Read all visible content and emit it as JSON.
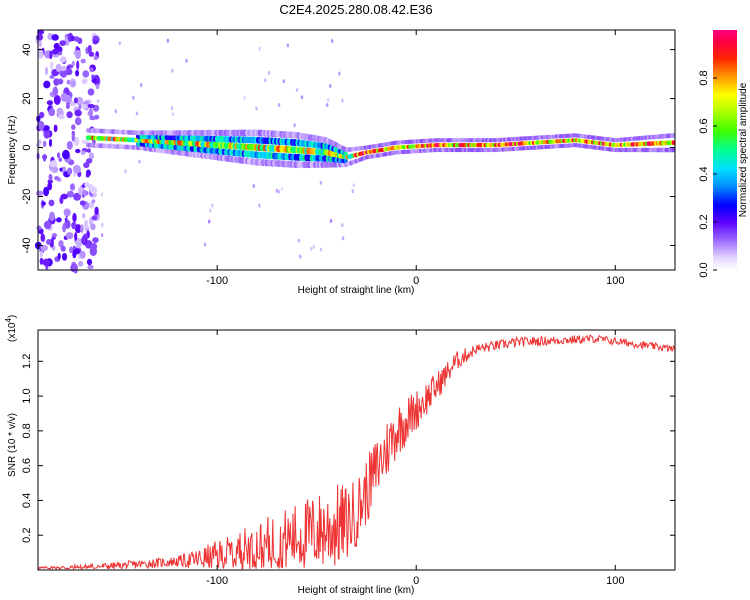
{
  "title": "C2E4.2025.280.08.42.E36",
  "chart_data": [
    {
      "type": "heatmap",
      "name": "spectrogram",
      "xlabel": "Height of straight line (km)",
      "ylabel": "Frequency (Hz)",
      "xlim": [
        -190,
        130
      ],
      "ylim": [
        -50,
        48
      ],
      "xticks": [
        -100,
        0,
        100
      ],
      "xtick_labels": [
        "-100",
        "0",
        "100"
      ],
      "yticks": [
        -40,
        -20,
        0,
        20,
        40
      ],
      "ytick_labels": [
        "-40",
        "-20",
        "0",
        "20",
        "40"
      ],
      "colorbar": {
        "label": "Normalized spectral amplitude",
        "ticks": [
          0.0,
          0.2,
          0.4,
          0.6,
          0.8
        ],
        "tick_labels": [
          "0.0",
          "0.2",
          "0.4",
          "0.6",
          "0.8"
        ],
        "range": [
          0,
          1
        ]
      },
      "noise_region_x": [
        -190,
        -160
      ],
      "band": [
        {
          "x": -165,
          "freq": 4,
          "width": 3
        },
        {
          "x": -140,
          "freq": 3,
          "width": 3
        },
        {
          "x": -120,
          "freq": 2,
          "width": 4
        },
        {
          "x": -100,
          "freq": 1,
          "width": 5
        },
        {
          "x": -80,
          "freq": 0,
          "width": 6
        },
        {
          "x": -60,
          "freq": -1,
          "width": 6
        },
        {
          "x": -45,
          "freq": -2,
          "width": 5
        },
        {
          "x": -35,
          "freq": -4,
          "width": 3
        },
        {
          "x": -25,
          "freq": -2,
          "width": 2
        },
        {
          "x": -10,
          "freq": 0,
          "width": 2
        },
        {
          "x": 10,
          "freq": 1,
          "width": 2
        },
        {
          "x": 40,
          "freq": 1,
          "width": 2
        },
        {
          "x": 80,
          "freq": 3,
          "width": 2
        },
        {
          "x": 100,
          "freq": 1,
          "width": 2
        },
        {
          "x": 130,
          "freq": 2,
          "width": 3
        }
      ]
    },
    {
      "type": "line",
      "name": "snr",
      "xlabel": "Height of straight line (km)",
      "ylabel": "SNR (10 * v/v)",
      "yscale_label": "(x10",
      "yscale_exp": "4",
      "yscale_close": ")",
      "xlim": [
        -190,
        130
      ],
      "ylim": [
        0,
        1.38
      ],
      "xticks": [
        -100,
        0,
        100
      ],
      "xtick_labels": [
        "-100",
        "0",
        "100"
      ],
      "yticks": [
        0.2,
        0.4,
        0.6,
        0.8,
        1.0,
        1.2
      ],
      "ytick_labels": [
        "0.2",
        "0.4",
        "0.6",
        "0.8",
        "1.0",
        "1.2"
      ],
      "color": "#ee3333",
      "trend": {
        "x": [
          -190,
          -170,
          -150,
          -130,
          -110,
          -95,
          -85,
          -70,
          -60,
          -50,
          -40,
          -35,
          -30,
          -25,
          -20,
          -10,
          0,
          10,
          20,
          30,
          50,
          70,
          90,
          110,
          130
        ],
        "y": [
          0.01,
          0.015,
          0.025,
          0.04,
          0.06,
          0.09,
          0.12,
          0.16,
          0.19,
          0.22,
          0.25,
          0.27,
          0.33,
          0.45,
          0.58,
          0.8,
          0.92,
          1.05,
          1.2,
          1.27,
          1.31,
          1.32,
          1.33,
          1.3,
          1.27
        ]
      },
      "noise_amp": {
        "x": [
          -190,
          -120,
          -90,
          -60,
          -40,
          -30,
          -15,
          0,
          15,
          30,
          130
        ],
        "y": [
          0.01,
          0.03,
          0.12,
          0.2,
          0.25,
          0.2,
          0.18,
          0.12,
          0.07,
          0.03,
          0.02
        ]
      }
    }
  ]
}
